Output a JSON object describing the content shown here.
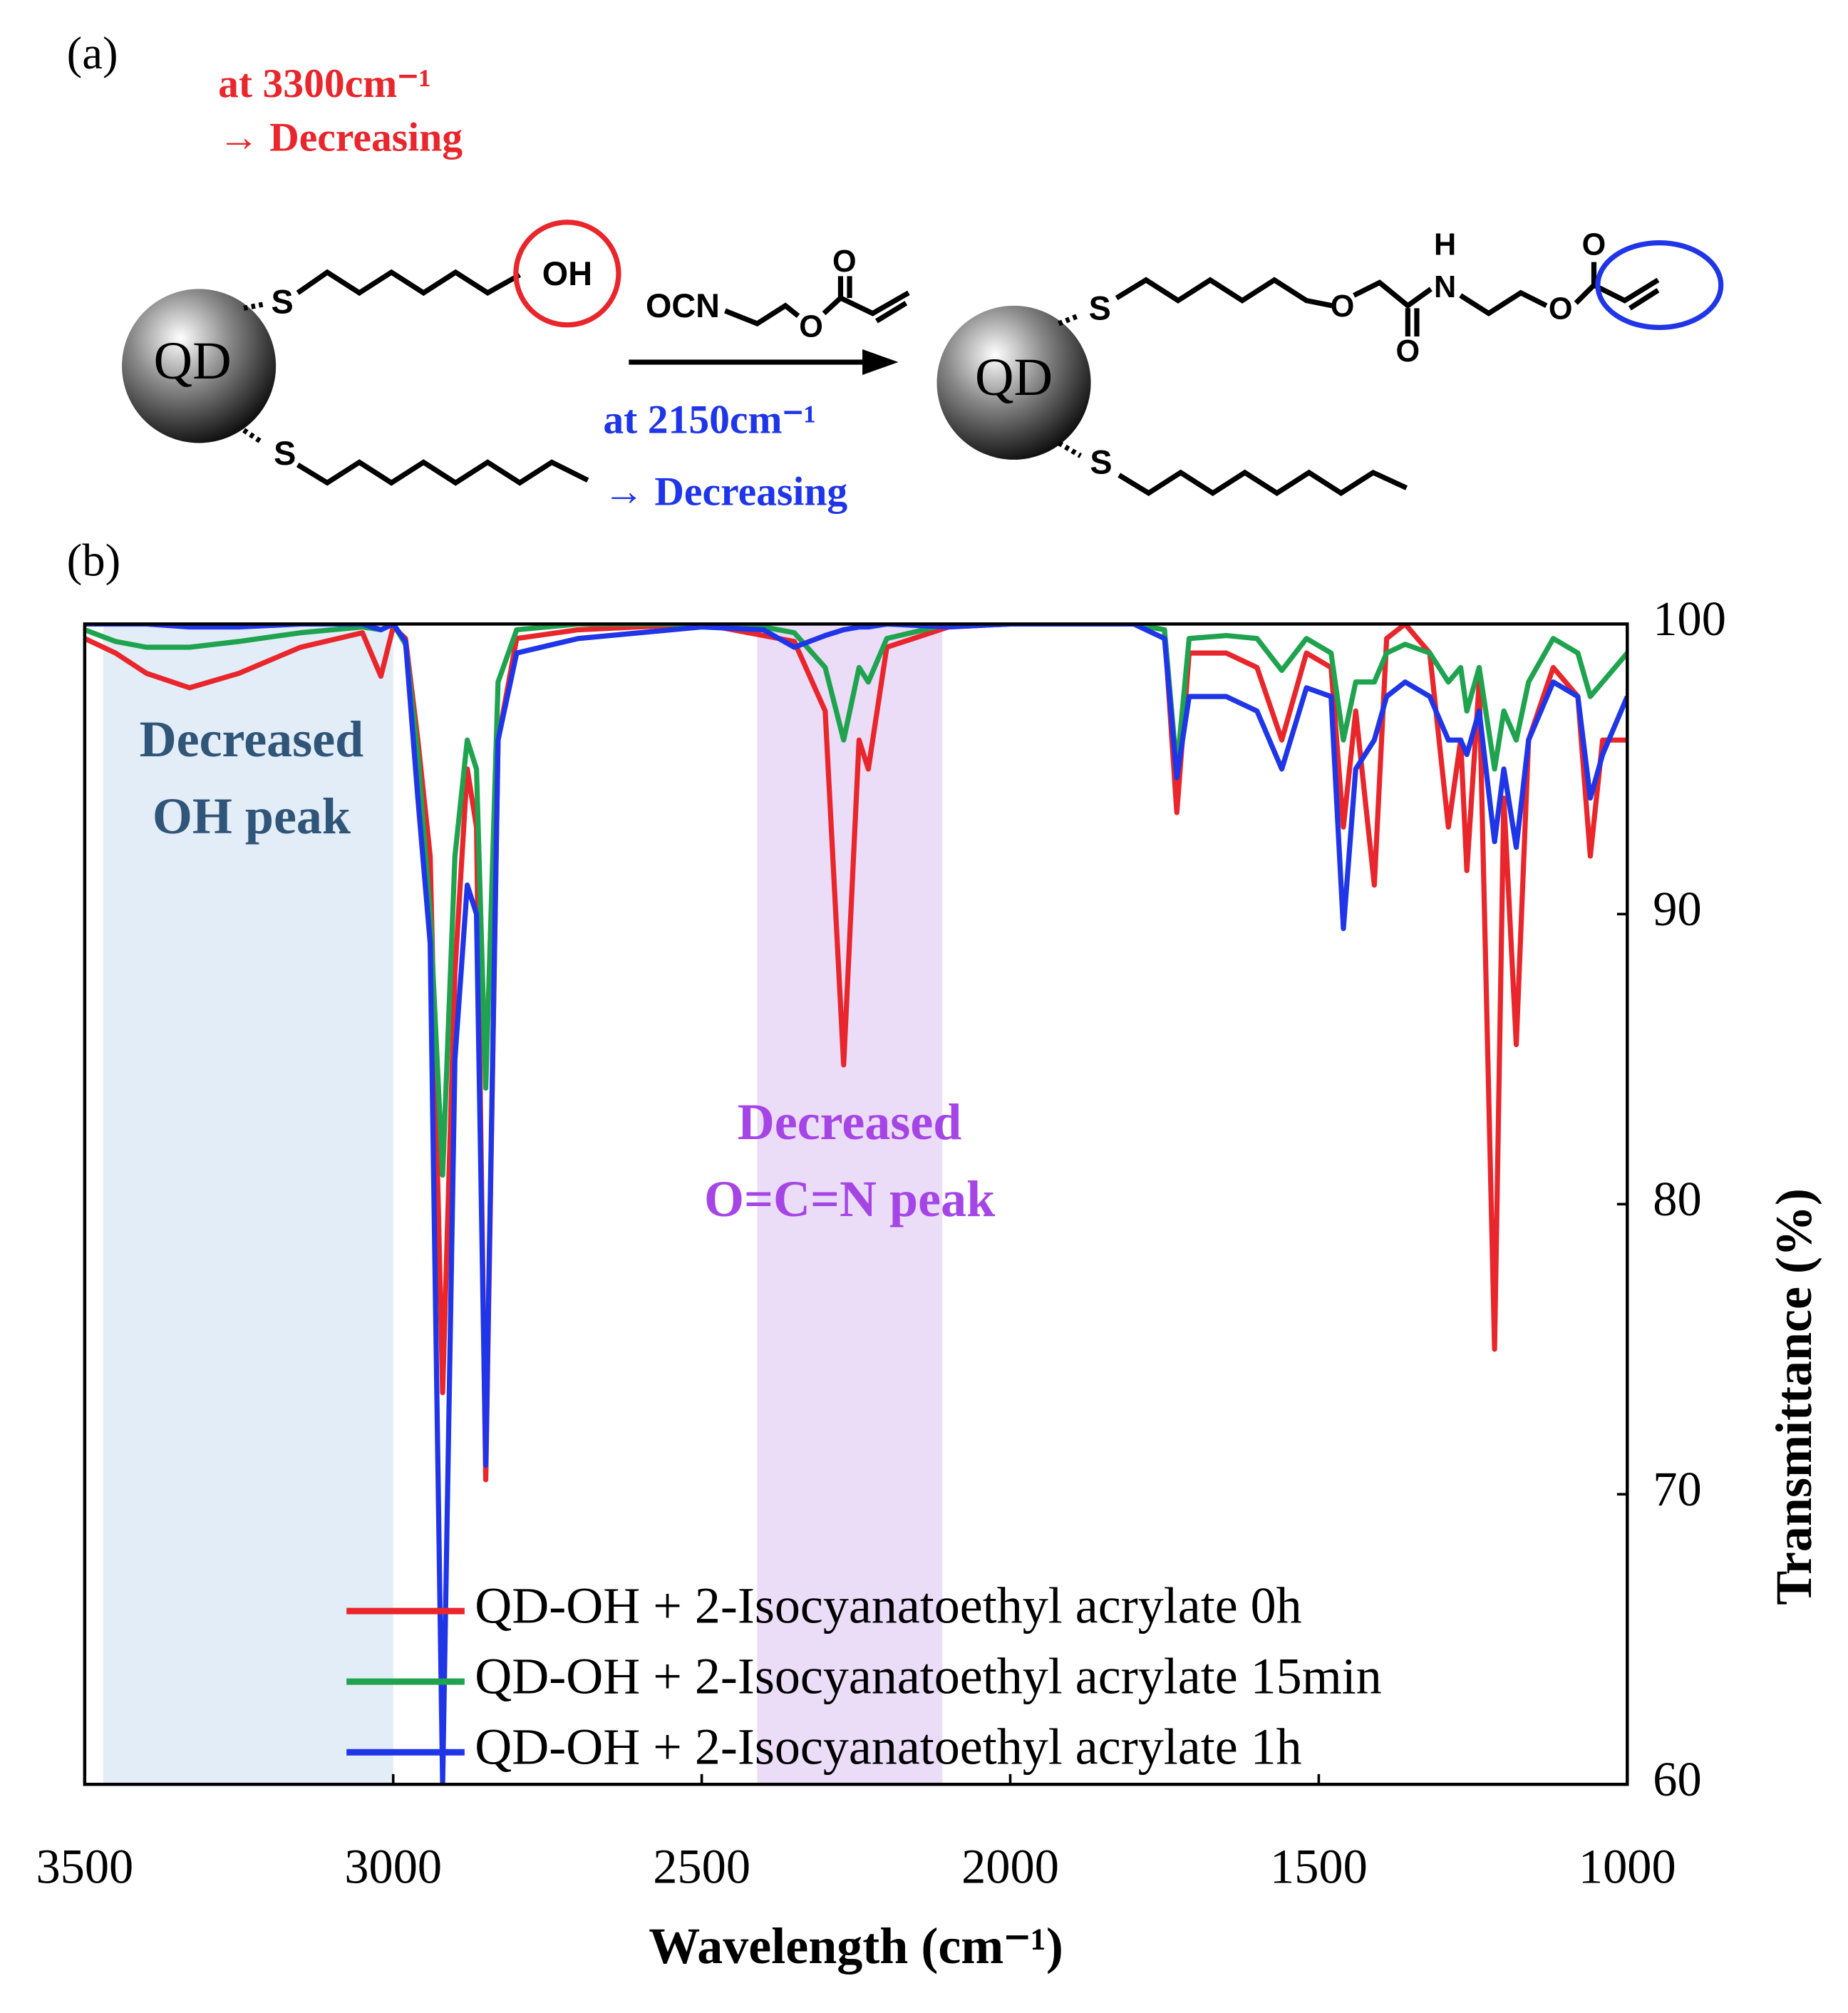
{
  "diagram": {
    "labels": [
      "(a)",
      "at 3300cm⁻¹",
      "→ Decreasing",
      "QD",
      "S",
      "OH",
      "S",
      "OCN",
      "O",
      "O",
      "at 2150cm⁻¹",
      "→ Decreasing",
      "QD",
      "S",
      "S",
      "O",
      "O",
      "H",
      "N",
      "O",
      "O",
      "(b)"
    ]
  },
  "chart_data": {
    "type": "line",
    "xlabel": "Wavelength (cm⁻¹)",
    "ylabel": "Transmittance (%)",
    "xlim": [
      3500,
      1000
    ],
    "ylim": [
      60,
      100
    ],
    "xticks": [
      3500,
      3000,
      2500,
      2000,
      1500,
      1000
    ],
    "yticks": [
      60,
      70,
      80,
      90,
      100
    ],
    "y_axis_side": "right",
    "legend": "lower right",
    "shaded_regions": [
      {
        "xlim": [
          3470,
          3000
        ],
        "color": "#e3edf7",
        "label": [
          "Decreased",
          "OH peak"
        ],
        "label_color": "#2f5579"
      },
      {
        "xlim": [
          2410,
          2110
        ],
        "color": "#ebdcf8",
        "label": [
          "Decreased",
          "O=C=N peak"
        ],
        "label_color": "#a545e6"
      }
    ],
    "x": [
      3500,
      3450,
      3400,
      3330,
      3250,
      3150,
      3050,
      3020,
      3000,
      2980,
      2960,
      2940,
      2920,
      2900,
      2880,
      2865,
      2850,
      2830,
      2800,
      2700,
      2500,
      2400,
      2350,
      2300,
      2270,
      2245,
      2230,
      2200,
      2100,
      2000,
      1800,
      1750,
      1730,
      1710,
      1650,
      1600,
      1560,
      1520,
      1480,
      1460,
      1440,
      1410,
      1390,
      1360,
      1320,
      1290,
      1270,
      1260,
      1240,
      1215,
      1200,
      1180,
      1160,
      1120,
      1080,
      1060,
      1040,
      1000
    ],
    "series": [
      {
        "name": "QD-OH + 2-Isocyanatoethyl acrylate 0h",
        "color": "#e8262b",
        "values": [
          99.5,
          99,
          98.3,
          97.8,
          98.3,
          99.2,
          99.7,
          98.2,
          99.9,
          99.5,
          96,
          92,
          73.5,
          88,
          95,
          93,
          70.5,
          96,
          99.5,
          99.8,
          100,
          99.6,
          99.4,
          97,
          84.8,
          96,
          95,
          99.2,
          99.9,
          100,
          100,
          99.8,
          93.5,
          99,
          99,
          98.5,
          96,
          99,
          98.5,
          93,
          97,
          91,
          99.5,
          100,
          99,
          93,
          96,
          91.5,
          98,
          75,
          94,
          85.5,
          96,
          98.5,
          97.5,
          92,
          96,
          96
        ]
      },
      {
        "name": "QD-OH + 2-Isocyanatoethyl acrylate 15min",
        "color": "#1fa34f",
        "values": [
          99.8,
          99.4,
          99.2,
          99.2,
          99.4,
          99.7,
          99.9,
          99.8,
          100,
          99.3,
          95.5,
          90,
          81,
          92,
          96,
          95,
          84,
          98,
          99.8,
          100,
          100,
          99.9,
          99.7,
          98.5,
          96,
          98.5,
          98,
          99.5,
          100,
          100,
          100,
          99.8,
          95,
          99.5,
          99.6,
          99.5,
          98.4,
          99.5,
          99,
          96,
          98,
          98,
          99,
          99.3,
          99,
          98,
          98.5,
          97,
          98.5,
          95,
          97,
          96,
          98,
          99.5,
          99,
          97.5,
          98,
          99
        ]
      },
      {
        "name": "QD-OH + 2-Isocyanatoethyl acrylate 1h",
        "color": "#1f35e8",
        "values": [
          100,
          100,
          100,
          99.9,
          99.9,
          100,
          100,
          99.8,
          100,
          99.4,
          94,
          89,
          60,
          85,
          91,
          90,
          71,
          96,
          99,
          99.5,
          99.9,
          99.8,
          99.2,
          99.6,
          99.8,
          99.9,
          99.9,
          100,
          99.9,
          100,
          100,
          99.5,
          94.7,
          97.5,
          97.5,
          97,
          95,
          97.8,
          97.5,
          89.5,
          95,
          96,
          97.5,
          98,
          97.5,
          96,
          96,
          95.5,
          97,
          92.5,
          95,
          92.3,
          96,
          98,
          97.5,
          94,
          95.5,
          97.5
        ]
      }
    ]
  }
}
